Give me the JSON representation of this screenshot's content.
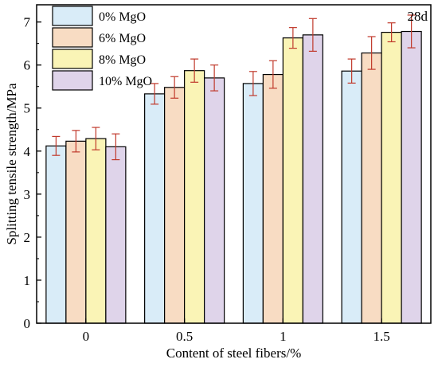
{
  "chart_data": {
    "type": "bar",
    "annotation": "28d",
    "xlabel": "Content of steel fibers/%",
    "ylabel": "Splitting tensile strength/MPa",
    "categories": [
      "0",
      "0.5",
      "1",
      "1.5"
    ],
    "ylim": [
      0,
      7.4
    ],
    "yticks": [
      0,
      1,
      2,
      3,
      4,
      5,
      6,
      7
    ],
    "legend_position": "top-left",
    "grid": false,
    "series": [
      {
        "name": "0% MgO",
        "color": "#d9ecf8",
        "values": [
          4.12,
          5.33,
          5.57,
          5.86
        ],
        "errors": [
          0.22,
          0.24,
          0.28,
          0.28
        ]
      },
      {
        "name": "6% MgO",
        "color": "#f8dcc3",
        "values": [
          4.23,
          5.48,
          5.78,
          6.28
        ],
        "errors": [
          0.25,
          0.25,
          0.32,
          0.38
        ]
      },
      {
        "name": "8% MgO",
        "color": "#faf4b6",
        "values": [
          4.29,
          5.87,
          6.63,
          6.76
        ],
        "errors": [
          0.26,
          0.27,
          0.24,
          0.22
        ]
      },
      {
        "name": "10% MgO",
        "color": "#dfd4ea",
        "values": [
          4.1,
          5.7,
          6.7,
          6.78
        ],
        "errors": [
          0.3,
          0.3,
          0.38,
          0.38
        ]
      }
    ]
  }
}
